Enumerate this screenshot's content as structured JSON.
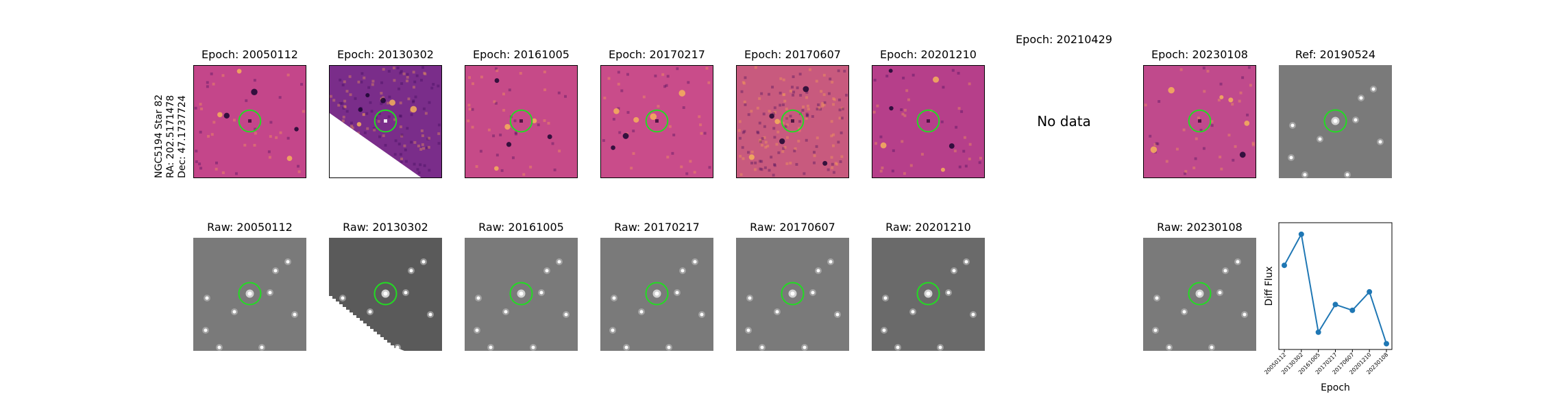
{
  "row_label": {
    "object": "NGC5194 Star 82",
    "ra": "RA: 202.5171478",
    "dec": "Dec: 47.1737724"
  },
  "diff_row": [
    {
      "title": "Epoch: 20050112",
      "has_data": true
    },
    {
      "title": "Epoch: 20130302",
      "has_data": true
    },
    {
      "title": "Epoch: 20161005",
      "has_data": true
    },
    {
      "title": "Epoch: 20170217",
      "has_data": true
    },
    {
      "title": "Epoch: 20170607",
      "has_data": true
    },
    {
      "title": "Epoch: 20201210",
      "has_data": true
    },
    {
      "title": "Epoch: 20210429",
      "has_data": false,
      "nodata_text": "No data"
    },
    {
      "title": "Epoch: 20230108",
      "has_data": true
    }
  ],
  "ref_panel": {
    "title": "Ref: 20190524"
  },
  "raw_row": [
    {
      "title": "Raw: 20050112"
    },
    {
      "title": "Raw: 20130302"
    },
    {
      "title": "Raw: 20161005"
    },
    {
      "title": "Raw: 20170217"
    },
    {
      "title": "Raw: 20170607"
    },
    {
      "title": "Raw: 20201210"
    },
    {
      "title": ""
    },
    {
      "title": "Raw: 20230108"
    }
  ],
  "colors": {
    "diff_bg": "#c2458c",
    "circle": "#22dd22",
    "line": "#1f77b4",
    "raw_bg": "#7a7a7a"
  },
  "chart_data": {
    "type": "line",
    "x": [
      "20050112",
      "20130302",
      "20161005",
      "20170217",
      "20170607",
      "20201210",
      "20230108"
    ],
    "values": [
      0.68,
      0.95,
      0.1,
      0.34,
      0.29,
      0.45,
      0.0
    ],
    "xlabel": "Epoch",
    "ylabel": "Diff Flux",
    "ylim": [
      -0.05,
      1.05
    ],
    "marker": "circle",
    "grid": false
  }
}
